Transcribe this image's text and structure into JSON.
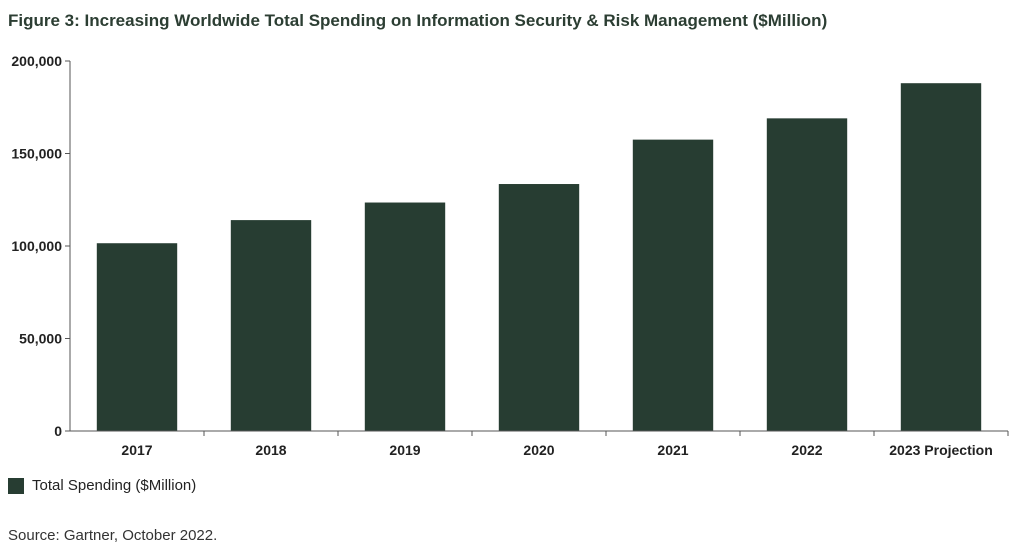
{
  "chart_data": {
    "type": "bar",
    "title": "Figure 3: Increasing Worldwide Total Spending on Information Security & Risk Management ($Million)",
    "categories": [
      "2017",
      "2018",
      "2019",
      "2020",
      "2021",
      "2022",
      "2023 Projection"
    ],
    "series": [
      {
        "name": "Total Spending ($Million)",
        "values": [
          101500,
          114000,
          123500,
          133500,
          157500,
          169000,
          188000
        ]
      }
    ],
    "yticks": [
      "0",
      "50,000",
      "100,000",
      "150,000",
      "200,000"
    ],
    "ylim": [
      0,
      200000
    ],
    "xlabel": "",
    "ylabel": "",
    "grid": false,
    "legend_position": "bottom-left",
    "bar_color": "#273d32"
  },
  "source": "Source: Gartner, October 2022."
}
